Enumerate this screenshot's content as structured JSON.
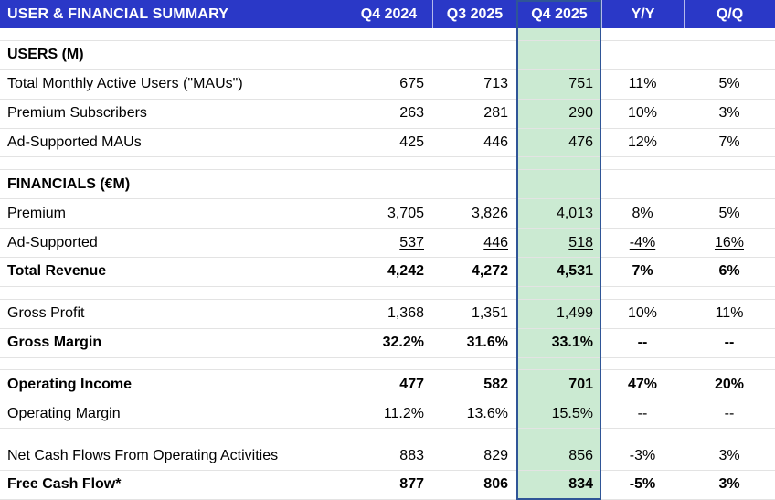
{
  "title": "USER & FINANCIAL SUMMARY",
  "columns": [
    "Q4 2024",
    "Q3 2025",
    "Q4 2025",
    "Y/Y",
    "Q/Q"
  ],
  "highlight_column": "Q4 2025",
  "colors": {
    "header_bg": "#2A38C7",
    "header_text": "#FFFFFF",
    "highlight_fill": "#CBEAD2",
    "highlight_border": "#2F5597",
    "row_line": "#E3E3E3",
    "text": "#000000"
  },
  "rows": [
    {
      "kind": "spacer",
      "label": "",
      "values": [
        "",
        "",
        "",
        "",
        ""
      ]
    },
    {
      "kind": "section",
      "label": "USERS (M)",
      "values": [
        "",
        "",
        "",
        "",
        ""
      ]
    },
    {
      "kind": "data",
      "label": "Total Monthly Active Users (\"MAUs\")",
      "values": [
        "675",
        "713",
        "751",
        "11%",
        "5%"
      ]
    },
    {
      "kind": "data",
      "label": "Premium Subscribers",
      "values": [
        "263",
        "281",
        "290",
        "10%",
        "3%"
      ]
    },
    {
      "kind": "data",
      "label": "Ad-Supported MAUs",
      "values": [
        "425",
        "446",
        "476",
        "12%",
        "7%"
      ]
    },
    {
      "kind": "spacer",
      "label": "",
      "values": [
        "",
        "",
        "",
        "",
        ""
      ]
    },
    {
      "kind": "section",
      "label": "FINANCIALS (€M)",
      "values": [
        "",
        "",
        "",
        "",
        ""
      ]
    },
    {
      "kind": "data",
      "label": "Premium",
      "values": [
        "3,705",
        "3,826",
        "4,013",
        "8%",
        "5%"
      ]
    },
    {
      "kind": "data",
      "label": "Ad-Supported",
      "values": [
        "537",
        "446",
        "518",
        "-4%",
        "16%"
      ],
      "underline_values": true
    },
    {
      "kind": "data",
      "label": "Total Revenue",
      "values": [
        "4,242",
        "4,272",
        "4,531",
        "7%",
        "6%"
      ],
      "bold": true
    },
    {
      "kind": "spacer",
      "label": "",
      "values": [
        "",
        "",
        "",
        "",
        ""
      ]
    },
    {
      "kind": "data",
      "label": "Gross Profit",
      "values": [
        "1,368",
        "1,351",
        "1,499",
        "10%",
        "11%"
      ]
    },
    {
      "kind": "data",
      "label": "Gross Margin",
      "values": [
        "32.2%",
        "31.6%",
        "33.1%",
        "--",
        "--"
      ],
      "bold": true
    },
    {
      "kind": "spacer",
      "label": "",
      "values": [
        "",
        "",
        "",
        "",
        ""
      ]
    },
    {
      "kind": "data",
      "label": "Operating Income",
      "values": [
        "477",
        "582",
        "701",
        "47%",
        "20%"
      ],
      "bold": true
    },
    {
      "kind": "data",
      "label": "Operating Margin",
      "values": [
        "11.2%",
        "13.6%",
        "15.5%",
        "--",
        "--"
      ]
    },
    {
      "kind": "spacer",
      "label": "",
      "values": [
        "",
        "",
        "",
        "",
        ""
      ]
    },
    {
      "kind": "data",
      "label": "Net Cash Flows From Operating Activities",
      "values": [
        "883",
        "829",
        "856",
        "-3%",
        "3%"
      ]
    },
    {
      "kind": "data",
      "label": "Free Cash Flow*",
      "values": [
        "877",
        "806",
        "834",
        "-5%",
        "3%"
      ],
      "bold": true
    }
  ],
  "chart_data": {
    "type": "table",
    "title": "USER & FINANCIAL SUMMARY",
    "columns": [
      "Metric",
      "Q4 2024",
      "Q3 2025",
      "Q4 2025",
      "Y/Y",
      "Q/Q"
    ],
    "highlighted_column": "Q4 2025",
    "rows": [
      [
        "USERS (M)",
        "",
        "",
        "",
        "",
        ""
      ],
      [
        "Total Monthly Active Users (\"MAUs\")",
        675,
        713,
        751,
        "11%",
        "5%"
      ],
      [
        "Premium Subscribers",
        263,
        281,
        290,
        "10%",
        "3%"
      ],
      [
        "Ad-Supported MAUs",
        425,
        446,
        476,
        "12%",
        "7%"
      ],
      [
        "FINANCIALS (€M)",
        "",
        "",
        "",
        "",
        ""
      ],
      [
        "Premium",
        3705,
        3826,
        4013,
        "8%",
        "5%"
      ],
      [
        "Ad-Supported",
        537,
        446,
        518,
        "-4%",
        "16%"
      ],
      [
        "Total Revenue",
        4242,
        4272,
        4531,
        "7%",
        "6%"
      ],
      [
        "Gross Profit",
        1368,
        1351,
        1499,
        "10%",
        "11%"
      ],
      [
        "Gross Margin",
        "32.2%",
        "31.6%",
        "33.1%",
        "--",
        "--"
      ],
      [
        "Operating Income",
        477,
        582,
        701,
        "47%",
        "20%"
      ],
      [
        "Operating Margin",
        "11.2%",
        "13.6%",
        "15.5%",
        "--",
        "--"
      ],
      [
        "Net Cash Flows From Operating Activities",
        883,
        829,
        856,
        "-3%",
        "3%"
      ],
      [
        "Free Cash Flow*",
        877,
        806,
        834,
        "-5%",
        "3%"
      ]
    ]
  }
}
